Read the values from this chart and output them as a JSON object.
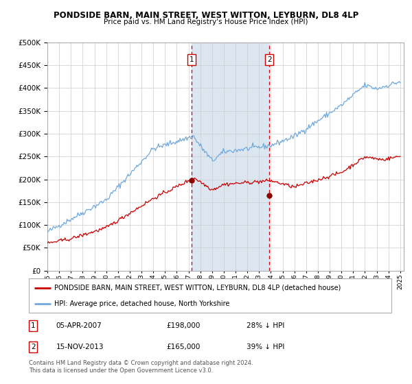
{
  "title": "PONDSIDE BARN, MAIN STREET, WEST WITTON, LEYBURN, DL8 4LP",
  "subtitle": "Price paid vs. HM Land Registry's House Price Index (HPI)",
  "ylim": [
    0,
    500000
  ],
  "yticks": [
    0,
    50000,
    100000,
    150000,
    200000,
    250000,
    300000,
    350000,
    400000,
    450000,
    500000
  ],
  "hpi_color": "#6fa8dc",
  "price_color": "#cc0000",
  "marker_color": "#8b0000",
  "shade_color": "#dce6f1",
  "dashed_color": "#cc0000",
  "transaction1_year": 2007.25,
  "transaction1_price": 198000,
  "transaction2_year": 2013.88,
  "transaction2_price": 165000,
  "legend_property": "PONDSIDE BARN, MAIN STREET, WEST WITTON, LEYBURN, DL8 4LP (detached house)",
  "legend_hpi": "HPI: Average price, detached house, North Yorkshire",
  "footer": "Contains HM Land Registry data © Crown copyright and database right 2024.\nThis data is licensed under the Open Government Licence v3.0.",
  "background_color": "#ffffff",
  "grid_color": "#cccccc"
}
